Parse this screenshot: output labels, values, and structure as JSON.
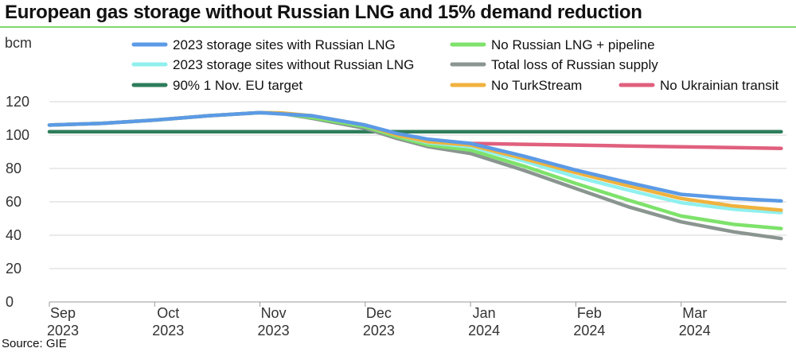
{
  "chart_data": {
    "type": "line",
    "title": "European gas storage without Russian LNG and 15% demand reduction",
    "ylabel": "bcm",
    "xlabel": "",
    "source": "Source: GIE",
    "ylim": [
      0,
      120
    ],
    "yticks": [
      0,
      20,
      40,
      60,
      80,
      100,
      120
    ],
    "xlim": [
      0,
      7
    ],
    "xticks": [
      {
        "x": 0,
        "month": "Sep",
        "year": "2023"
      },
      {
        "x": 1,
        "month": "Oct",
        "year": "2023"
      },
      {
        "x": 2,
        "month": "Nov",
        "year": "2023"
      },
      {
        "x": 3,
        "month": "Dec",
        "year": "2023"
      },
      {
        "x": 4,
        "month": "Jan",
        "year": "2024"
      },
      {
        "x": 5,
        "month": "Feb",
        "year": "2024"
      },
      {
        "x": 6,
        "month": "Mar",
        "year": "2024"
      }
    ],
    "series": [
      {
        "name": "90% 1 Nov. EU target",
        "color": "#2e7d5b",
        "points": [
          [
            0,
            102
          ],
          [
            6.95,
            102
          ]
        ]
      },
      {
        "name": "No Ukrainian transit",
        "color": "#e0607e",
        "points": [
          [
            3.5,
            97
          ],
          [
            4,
            95
          ],
          [
            4.5,
            94.5
          ],
          [
            5,
            94
          ],
          [
            5.5,
            93.5
          ],
          [
            6,
            93
          ],
          [
            6.5,
            92.5
          ],
          [
            6.95,
            92
          ]
        ]
      },
      {
        "name": "Total loss of Russian supply",
        "color": "#8a9590",
        "points": [
          [
            0,
            106
          ],
          [
            0.5,
            107
          ],
          [
            1,
            109
          ],
          [
            1.5,
            111.5
          ],
          [
            2,
            113.5
          ],
          [
            2.2,
            113
          ],
          [
            2.5,
            110
          ],
          [
            3,
            104
          ],
          [
            3.3,
            98
          ],
          [
            3.6,
            93
          ],
          [
            4,
            89
          ],
          [
            4.5,
            79
          ],
          [
            5,
            68
          ],
          [
            5.5,
            57
          ],
          [
            6,
            48
          ],
          [
            6.5,
            42
          ],
          [
            6.95,
            38
          ]
        ]
      },
      {
        "name": "No Russian LNG + pipeline",
        "color": "#7ee26b",
        "points": [
          [
            0,
            106
          ],
          [
            0.5,
            107
          ],
          [
            1,
            109
          ],
          [
            1.5,
            111.5
          ],
          [
            2,
            113.5
          ],
          [
            2.2,
            113
          ],
          [
            2.5,
            110.5
          ],
          [
            3,
            105
          ],
          [
            3.3,
            99
          ],
          [
            3.6,
            94
          ],
          [
            4,
            91
          ],
          [
            4.5,
            81.5
          ],
          [
            5,
            71
          ],
          [
            5.5,
            61
          ],
          [
            6,
            51.5
          ],
          [
            6.5,
            46.5
          ],
          [
            6.95,
            44
          ]
        ]
      },
      {
        "name": "2023 storage sites without Russian LNG",
        "color": "#8ff0ee",
        "points": [
          [
            0,
            106
          ],
          [
            0.5,
            107
          ],
          [
            1,
            109
          ],
          [
            1.5,
            111.5
          ],
          [
            2,
            113.5
          ],
          [
            2.2,
            113.3
          ],
          [
            2.5,
            111.5
          ],
          [
            3,
            106
          ],
          [
            3.3,
            100
          ],
          [
            3.6,
            95.5
          ],
          [
            4,
            93
          ],
          [
            4.5,
            84.5
          ],
          [
            5,
            75
          ],
          [
            5.5,
            67
          ],
          [
            6,
            59.5
          ],
          [
            6.5,
            55.5
          ],
          [
            6.95,
            53.5
          ]
        ]
      },
      {
        "name": "No TurkStream",
        "color": "#f0b23e",
        "points": [
          [
            0,
            106
          ],
          [
            0.5,
            107
          ],
          [
            1,
            109
          ],
          [
            1.5,
            111.5
          ],
          [
            2,
            113.5
          ],
          [
            2.2,
            113.3
          ],
          [
            2.5,
            111.5
          ],
          [
            3,
            106
          ],
          [
            3.3,
            100
          ],
          [
            3.6,
            96
          ],
          [
            4,
            94
          ],
          [
            4.5,
            86
          ],
          [
            5,
            77.5
          ],
          [
            5.5,
            69.5
          ],
          [
            6,
            62
          ],
          [
            6.5,
            57.5
          ],
          [
            6.95,
            55
          ]
        ]
      },
      {
        "name": "2023 storage sites with Russian LNG",
        "color": "#5b9ae6",
        "points": [
          [
            0,
            106
          ],
          [
            0.5,
            107
          ],
          [
            1,
            109
          ],
          [
            1.5,
            111.5
          ],
          [
            2,
            113.5
          ],
          [
            2.5,
            111.5
          ],
          [
            3,
            106
          ],
          [
            3.3,
            101
          ],
          [
            3.6,
            97.5
          ],
          [
            4,
            95
          ],
          [
            4.5,
            87.5
          ],
          [
            5,
            79
          ],
          [
            5.5,
            71.5
          ],
          [
            6,
            64.5
          ],
          [
            6.5,
            62
          ],
          [
            6.95,
            60.5
          ]
        ]
      }
    ],
    "legend": [
      {
        "name": "2023 storage sites with Russian LNG",
        "color": "#5b9ae6"
      },
      {
        "name": "No Russian LNG + pipeline",
        "color": "#7ee26b"
      },
      {
        "name": "2023 storage sites without Russian LNG",
        "color": "#8ff0ee"
      },
      {
        "name": "Total loss of Russian supply",
        "color": "#8a9590"
      },
      {
        "name": "90% 1 Nov. EU target",
        "color": "#2e7d5b"
      },
      {
        "name": "No TurkStream",
        "color": "#f0b23e"
      },
      {
        "name": "No Ukrainian transit",
        "color": "#e0607e"
      }
    ],
    "legend_position": "top"
  }
}
